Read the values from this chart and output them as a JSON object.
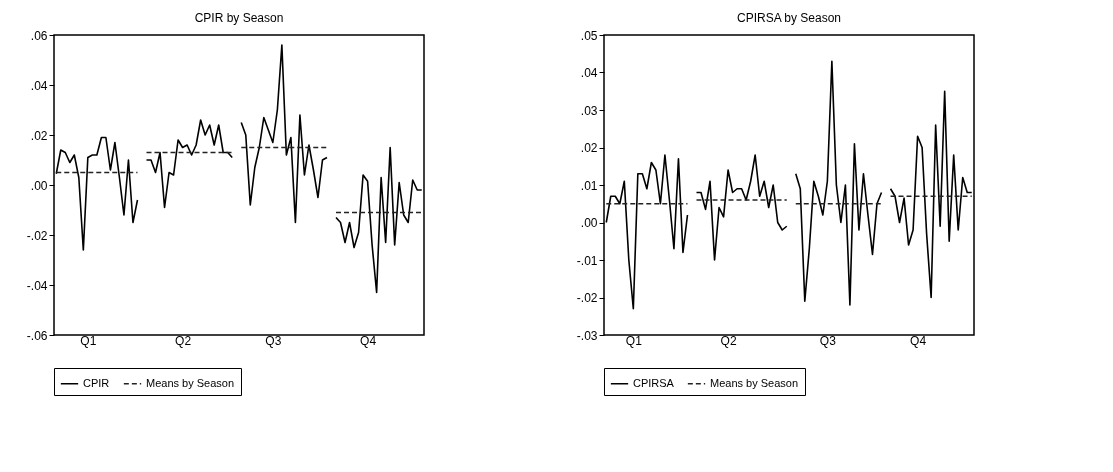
{
  "chart_data": [
    {
      "type": "line",
      "title": "CPIR by Season",
      "legend": "bottom",
      "grid": false,
      "categories": [
        null,
        null,
        null,
        null,
        null,
        null,
        null,
        "Q1",
        null,
        null,
        null,
        null,
        null,
        null,
        null,
        null,
        null,
        null,
        null,
        null,
        null,
        null,
        null,
        null,
        null,
        null,
        null,
        null,
        "Q2",
        null,
        null,
        null,
        null,
        null,
        null,
        null,
        null,
        null,
        null,
        null,
        null,
        null,
        null,
        null,
        null,
        null,
        null,
        null,
        "Q3",
        null,
        null,
        null,
        null,
        null,
        null,
        null,
        null,
        null,
        null,
        null,
        null,
        null,
        null,
        null,
        null,
        null,
        null,
        null,
        null,
        "Q4",
        null,
        null,
        null,
        null,
        null,
        null,
        null,
        null,
        null,
        null,
        null,
        null
      ],
      "ylim": [
        -0.06,
        0.06
      ],
      "yticks": [
        {
          "value": -0.06,
          "label": "-.06"
        },
        {
          "value": -0.04,
          "label": "-.04"
        },
        {
          "value": -0.02,
          "label": "-.02"
        },
        {
          "value": 0,
          "label": ".00"
        },
        {
          "value": 0.02,
          "label": ".02"
        },
        {
          "value": 0.04,
          "label": ".04"
        },
        {
          "value": 0.06,
          "label": ".06"
        }
      ],
      "series": [
        {
          "name": "CPIR",
          "color": "#000000",
          "line_style": "solid",
          "values": [
            0.0045,
            0.014,
            0.013,
            0.009,
            0.012,
            0.003,
            -0.026,
            0.011,
            0.012,
            0.012,
            0.019,
            0.019,
            0.006,
            0.017,
            0.003,
            -0.012,
            0.01,
            -0.015,
            -0.006,
            null,
            0.01,
            0.01,
            0.005,
            0.013,
            -0.009,
            0.005,
            0.004,
            0.018,
            0.015,
            0.016,
            0.012,
            0.016,
            0.026,
            0.02,
            0.024,
            0.016,
            0.024,
            0.013,
            0.013,
            0.011,
            null,
            0.025,
            0.02,
            -0.008,
            0.007,
            0.015,
            0.027,
            0.022,
            0.017,
            0.03,
            0.056,
            0.012,
            0.019,
            -0.015,
            0.028,
            0.004,
            0.016,
            0.006,
            -0.005,
            0.01,
            0.011,
            null,
            -0.013,
            -0.015,
            -0.023,
            -0.015,
            -0.025,
            -0.019,
            0.004,
            0.0015,
            -0.024,
            -0.043,
            0.003,
            -0.023,
            0.015,
            -0.024,
            0.001,
            -0.012,
            -0.015,
            0.002,
            -0.002,
            -0.002
          ]
        },
        {
          "name": "Means by Season",
          "color": "#222222",
          "line_style": "dashed",
          "values": [
            0.005,
            0.005,
            0.005,
            0.005,
            0.005,
            0.005,
            0.005,
            0.005,
            0.005,
            0.005,
            0.005,
            0.005,
            0.005,
            0.005,
            0.005,
            0.005,
            0.005,
            0.005,
            0.005,
            null,
            0.013,
            0.013,
            0.013,
            0.013,
            0.013,
            0.013,
            0.013,
            0.013,
            0.013,
            0.013,
            0.013,
            0.013,
            0.013,
            0.013,
            0.013,
            0.013,
            0.013,
            0.013,
            0.013,
            0.013,
            null,
            0.015,
            0.015,
            0.015,
            0.015,
            0.015,
            0.015,
            0.015,
            0.015,
            0.015,
            0.015,
            0.015,
            0.015,
            0.015,
            0.015,
            0.015,
            0.015,
            0.015,
            0.015,
            0.015,
            0.015,
            null,
            -0.011,
            -0.011,
            -0.011,
            -0.011,
            -0.011,
            -0.011,
            -0.011,
            -0.011,
            -0.011,
            -0.011,
            -0.011,
            -0.011,
            -0.011,
            -0.011,
            -0.011,
            -0.011,
            -0.011,
            -0.011,
            -0.011,
            -0.011
          ]
        }
      ]
    },
    {
      "type": "line",
      "title": "CPIRSA by Season",
      "legend": "bottom",
      "grid": false,
      "categories": [
        null,
        null,
        null,
        null,
        null,
        null,
        "Q1",
        null,
        null,
        null,
        null,
        null,
        null,
        null,
        null,
        null,
        null,
        null,
        null,
        null,
        null,
        null,
        null,
        null,
        null,
        null,
        null,
        "Q2",
        null,
        null,
        null,
        null,
        null,
        null,
        null,
        null,
        null,
        null,
        null,
        null,
        null,
        null,
        null,
        null,
        null,
        null,
        null,
        null,
        null,
        "Q3",
        null,
        null,
        null,
        null,
        null,
        null,
        null,
        null,
        null,
        null,
        null,
        null,
        null,
        null,
        null,
        null,
        null,
        null,
        null,
        "Q4",
        null,
        null,
        null,
        null,
        null,
        null,
        null,
        null,
        null,
        null,
        null,
        null
      ],
      "ylim": [
        -0.03,
        0.05
      ],
      "yticks": [
        {
          "value": -0.03,
          "label": "-.03"
        },
        {
          "value": -0.02,
          "label": "-.02"
        },
        {
          "value": -0.01,
          "label": "-.01"
        },
        {
          "value": 0,
          "label": ".00"
        },
        {
          "value": 0.01,
          "label": ".01"
        },
        {
          "value": 0.02,
          "label": ".02"
        },
        {
          "value": 0.03,
          "label": ".03"
        },
        {
          "value": 0.04,
          "label": ".04"
        },
        {
          "value": 0.05,
          "label": ".05"
        }
      ],
      "series": [
        {
          "name": "CPIRSA",
          "color": "#000000",
          "line_style": "solid",
          "values": [
            0.0,
            0.007,
            0.007,
            0.005,
            0.011,
            -0.01,
            -0.023,
            0.013,
            0.013,
            0.009,
            0.016,
            0.014,
            0.005,
            0.018,
            0.006,
            -0.007,
            0.017,
            -0.008,
            0.002,
            null,
            0.008,
            0.008,
            0.0035,
            0.011,
            -0.01,
            0.004,
            0.0015,
            0.014,
            0.008,
            0.009,
            0.009,
            0.006,
            0.011,
            0.018,
            0.007,
            0.011,
            0.004,
            0.01,
            0.0,
            -0.002,
            -0.001,
            null,
            0.013,
            0.009,
            -0.021,
            -0.007,
            0.011,
            0.007,
            0.002,
            0.011,
            0.043,
            0.01,
            0.0,
            0.01,
            -0.022,
            0.021,
            -0.002,
            0.013,
            0.002,
            -0.0085,
            0.005,
            0.008,
            null,
            0.009,
            0.007,
            0.0,
            0.0065,
            -0.006,
            -0.002,
            0.023,
            0.02,
            -0.003,
            -0.02,
            0.026,
            -0.001,
            0.035,
            -0.005,
            0.018,
            -0.002,
            0.012,
            0.008,
            0.008
          ]
        },
        {
          "name": "Means by Season",
          "color": "#222222",
          "line_style": "dashed",
          "values": [
            0.005,
            0.005,
            0.005,
            0.005,
            0.005,
            0.005,
            0.005,
            0.005,
            0.005,
            0.005,
            0.005,
            0.005,
            0.005,
            0.005,
            0.005,
            0.005,
            0.005,
            0.005,
            0.005,
            null,
            0.006,
            0.006,
            0.006,
            0.006,
            0.006,
            0.006,
            0.006,
            0.006,
            0.006,
            0.006,
            0.006,
            0.006,
            0.006,
            0.006,
            0.006,
            0.006,
            0.006,
            0.006,
            0.006,
            0.006,
            0.006,
            null,
            0.005,
            0.005,
            0.005,
            0.005,
            0.005,
            0.005,
            0.005,
            0.005,
            0.005,
            0.005,
            0.005,
            0.005,
            0.005,
            0.005,
            0.005,
            0.005,
            0.005,
            0.005,
            0.005,
            0.005,
            null,
            0.007,
            0.007,
            0.007,
            0.007,
            0.007,
            0.007,
            0.007,
            0.007,
            0.007,
            0.007,
            0.007,
            0.007,
            0.007,
            0.007,
            0.007,
            0.007,
            0.007,
            0.007,
            0.007
          ]
        }
      ]
    }
  ]
}
